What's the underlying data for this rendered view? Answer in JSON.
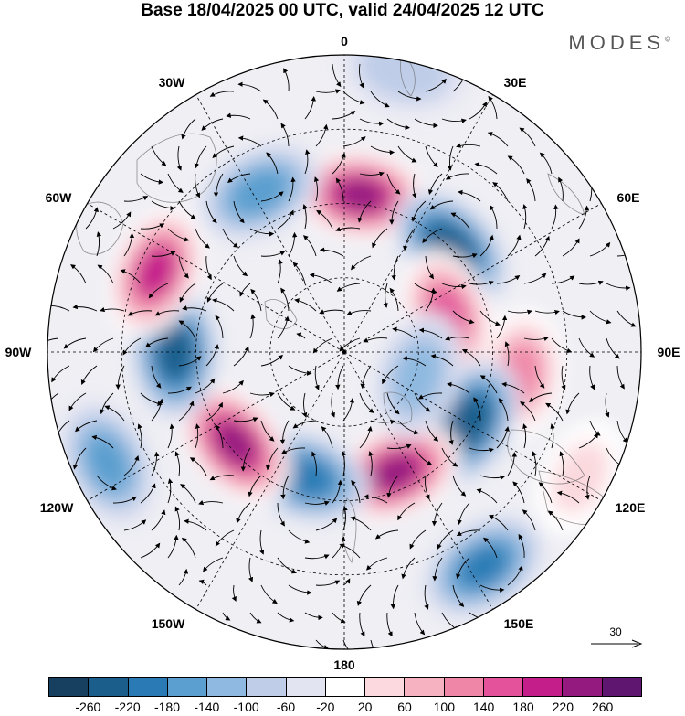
{
  "title": "Base 18/04/2025 00 UTC, valid 24/04/2025 12 UTC",
  "brand": "MODES",
  "brand_mark": "©",
  "longitude_labels": [
    {
      "id": "lon-0",
      "text": "0"
    },
    {
      "id": "lon-30e",
      "text": "30E"
    },
    {
      "id": "lon-60e",
      "text": "60E"
    },
    {
      "id": "lon-90e",
      "text": "90E"
    },
    {
      "id": "lon-120e",
      "text": "120E"
    },
    {
      "id": "lon-150e",
      "text": "150E"
    },
    {
      "id": "lon-180",
      "text": "180"
    },
    {
      "id": "lon-150w",
      "text": "150W"
    },
    {
      "id": "lon-120w",
      "text": "120W"
    },
    {
      "id": "lon-90w",
      "text": "90W"
    },
    {
      "id": "lon-60w",
      "text": "60W"
    },
    {
      "id": "lon-30w",
      "text": "30W"
    }
  ],
  "reference_vector": "30",
  "colorbar": {
    "colors": [
      "#173f5f",
      "#1b5e8c",
      "#2a7bb5",
      "#5a9fcf",
      "#8fb9e0",
      "#bfcde8",
      "#e3e4f2",
      "#ffffff",
      "#fbd9de",
      "#f6b2c1",
      "#ef86a8",
      "#e3529a",
      "#c41e8b",
      "#951a80",
      "#5f1670"
    ],
    "ticks": [
      "-260",
      "-220",
      "-180",
      "-140",
      "-100",
      "-60",
      "-20",
      "20",
      "60",
      "100",
      "140",
      "180",
      "220",
      "260"
    ]
  },
  "anomalies": [
    {
      "lon_deg": 6,
      "r_frac": 0.53,
      "value": 240
    },
    {
      "lon_deg": 46,
      "r_frac": 0.5,
      "value": -250
    },
    {
      "lon_deg": 70,
      "r_frac": 0.37,
      "value": 170
    },
    {
      "lon_deg": 97,
      "r_frac": 0.6,
      "value": 130
    },
    {
      "lon_deg": 120,
      "r_frac": 0.48,
      "value": -250
    },
    {
      "lon_deg": 157,
      "r_frac": 0.44,
      "value": 240
    },
    {
      "lon_deg": 147,
      "r_frac": 0.86,
      "value": -180
    },
    {
      "lon_deg": -162,
      "r_frac": 0.44,
      "value": -200
    },
    {
      "lon_deg": -130,
      "r_frac": 0.48,
      "value": 240
    },
    {
      "lon_deg": -90,
      "r_frac": 0.57,
      "value": -230
    },
    {
      "lon_deg": -67,
      "r_frac": 0.69,
      "value": 200
    },
    {
      "lon_deg": -28,
      "r_frac": 0.61,
      "value": -150
    },
    {
      "lon_deg": 108,
      "r_frac": 0.26,
      "value": -110
    },
    {
      "lon_deg": -115,
      "r_frac": 0.88,
      "value": -140
    },
    {
      "lon_deg": 12,
      "r_frac": 0.97,
      "value": -90
    },
    {
      "lon_deg": 118,
      "r_frac": 0.9,
      "value": 60
    }
  ]
}
